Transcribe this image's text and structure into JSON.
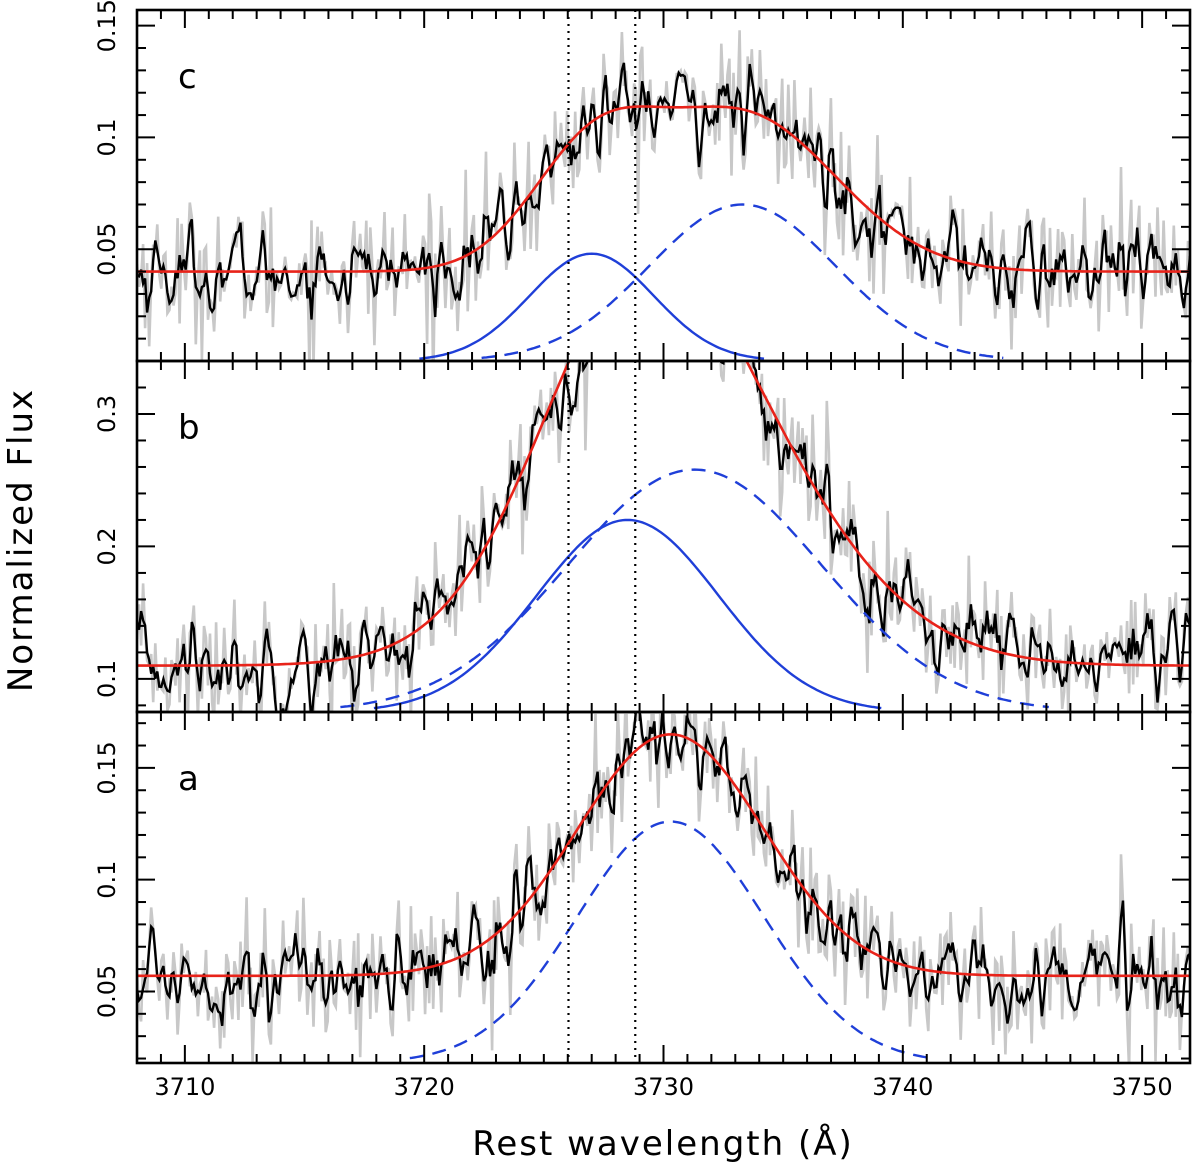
{
  "chart_data": {
    "type": "line",
    "xlabel": "Rest wavelength (Å)",
    "ylabel": "Normalized Flux",
    "xlim": [
      3708,
      3752
    ],
    "xticks": [
      3710,
      3720,
      3730,
      3740,
      3750
    ],
    "xtick_labels": [
      "3710",
      "3720",
      "3730",
      "3740",
      "3750"
    ],
    "reference_lines": [
      3726.03,
      3728.82
    ],
    "colors": {
      "smoothed_spectrum": "#000000",
      "raw_spectrum": "#c8c8c8",
      "total_fit": "#e8231a",
      "component_solid": "#1f3fd8",
      "component_dashed": "#1f3fd8",
      "reference_line": "#000000"
    },
    "panels": [
      {
        "label": "c",
        "ylim": [
          0.0,
          0.157
        ],
        "yticks": [
          0.05,
          0.1,
          0.15
        ],
        "ytick_labels": [
          "0.05",
          "0.1",
          "0.15"
        ],
        "continuum": 0.04,
        "series": [
          {
            "name": "narrow component (solid)",
            "style": "solid",
            "center": 3727.0,
            "amplitude": 0.048,
            "sigma": 2.6
          },
          {
            "name": "broad component (dashed)",
            "style": "dashed",
            "center": 3733.3,
            "amplitude": 0.07,
            "sigma": 3.9
          },
          {
            "name": "total fit",
            "style": "fit"
          }
        ]
      },
      {
        "label": "b",
        "ylim": [
          0.075,
          0.34
        ],
        "yticks": [
          0.1,
          0.2,
          0.3
        ],
        "ytick_labels": [
          "0.1",
          "0.2",
          "0.3"
        ],
        "continuum": 0.11,
        "series": [
          {
            "name": "narrow component (solid)",
            "style": "solid",
            "center": 3728.5,
            "amplitude": 0.145,
            "sigma": 3.8
          },
          {
            "name": "broad component (dashed)",
            "style": "dashed",
            "center": 3731.3,
            "amplitude": 0.183,
            "sigma": 5.3
          },
          {
            "name": "total fit",
            "style": "fit"
          }
        ]
      },
      {
        "label": "a",
        "ylim": [
          0.018,
          0.175
        ],
        "yticks": [
          0.05,
          0.1,
          0.15
        ],
        "ytick_labels": [
          "0.05",
          "0.1",
          "0.15"
        ],
        "continuum": 0.057,
        "series": [
          {
            "name": "broad component (dashed)",
            "style": "dashed",
            "center": 3730.3,
            "amplitude": 0.108,
            "sigma": 3.9
          },
          {
            "name": "total fit",
            "style": "fit"
          }
        ]
      }
    ]
  }
}
